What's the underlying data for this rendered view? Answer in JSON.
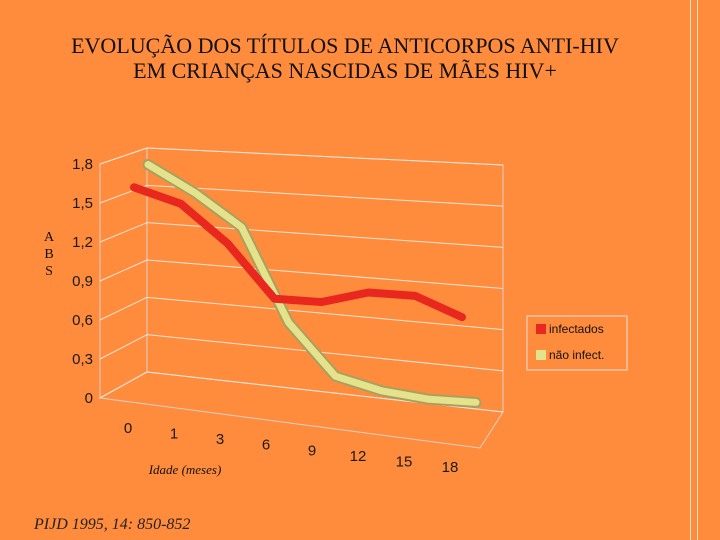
{
  "title_lines": [
    "EVOLUÇÃO DOS TÍTULOS DE ANTICORPOS ANTI-HIV",
    "EM CRIANÇAS NASCIDAS DE MÃES HIV+"
  ],
  "ylabel": [
    "A",
    "B",
    "S"
  ],
  "xlabel": "Idade (meses)",
  "source": "PIJD 1995, 14: 850-852",
  "colors": {
    "background": "#FF8C3C",
    "infectados": "#E8271E",
    "nao_infect": "#E4E38C",
    "plot_wall": "#FF8C3C",
    "grid": "#F2E4D8"
  },
  "chart_data": {
    "type": "line",
    "title": "EVOLUÇÃO DOS TÍTULOS DE ANTICORPOS ANTI-HIV EM CRIANÇAS NASCIDAS DE MÃES HIV+",
    "xlabel": "Idade (meses)",
    "ylabel": "ABS",
    "categories": [
      "0",
      "1",
      "3",
      "6",
      "9",
      "12",
      "15",
      "18"
    ],
    "yticks": [
      "0",
      "0,3",
      "0,6",
      "0,9",
      "1,2",
      "1,5",
      "1,8"
    ],
    "ylim": [
      0,
      1.8
    ],
    "grid": true,
    "legend": "right",
    "series": [
      {
        "name": "infectados",
        "values": [
          1.59,
          1.48,
          1.19,
          0.78,
          0.77,
          0.86,
          0.85,
          0.7
        ]
      },
      {
        "name": "não infect.",
        "values": [
          1.75,
          1.55,
          1.3,
          0.58,
          0.18,
          0.08,
          0.03,
          0.02
        ]
      }
    ]
  }
}
